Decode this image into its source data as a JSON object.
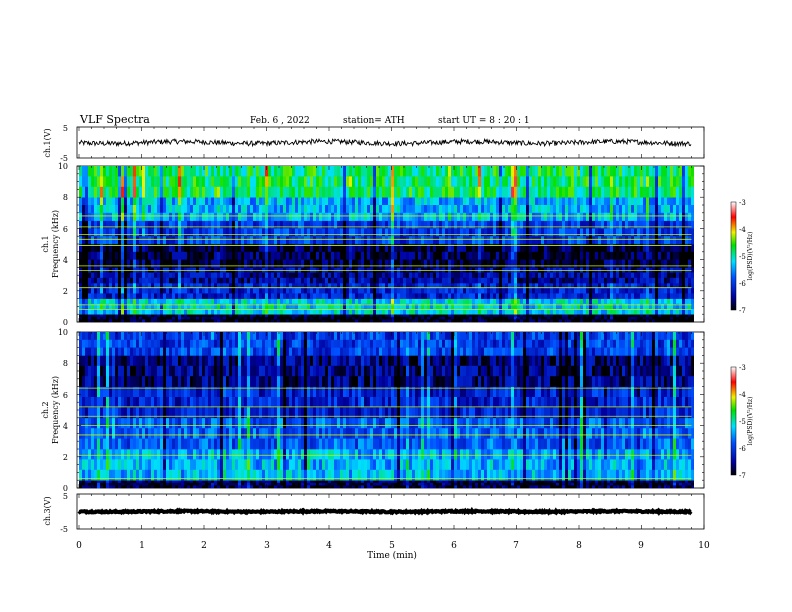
{
  "header": {
    "title": "VLF  Spectra",
    "date": "Feb. 6  , 2022",
    "station": "station= ATH",
    "start_ut": "start  UT  =   8  : 20 : 1"
  },
  "chart_data": [
    {
      "type": "line",
      "panel": "ch1-waveform",
      "ylabel": "ch.1(V)",
      "ylim": [
        -5,
        5
      ],
      "y_ticks": [
        "5",
        "-5"
      ],
      "xlim": [
        0,
        10
      ],
      "trace_extent_min": 9.8,
      "baseline_v": 0,
      "amplitude_v": 0.8,
      "color": "#000000"
    },
    {
      "type": "heatmap",
      "panel": "ch1-spectrogram",
      "ylabel": "ch.1",
      "ylabel2": "Frequency  (kHz)",
      "ylim": [
        0,
        10
      ],
      "y_ticks": [
        "0",
        "2",
        "4",
        "6",
        "8",
        "10"
      ],
      "xlim": [
        0,
        10
      ],
      "data_extent_min": 9.8,
      "colorbar": {
        "label": "log(PSD)(V²/Hz)",
        "range": [
          -7,
          -3
        ],
        "ticks": [
          "-3",
          "-4",
          "-5",
          "-6",
          "-7"
        ]
      },
      "bands": [
        {
          "from_khz": 0,
          "to_khz": 0.5,
          "log_psd": -7
        },
        {
          "from_khz": 0.5,
          "to_khz": 1.5,
          "log_psd": -5.2
        },
        {
          "from_khz": 1.5,
          "to_khz": 2.5,
          "log_psd": -6.2
        },
        {
          "from_khz": 2.5,
          "to_khz": 3.5,
          "log_psd": -6.5
        },
        {
          "from_khz": 3.5,
          "to_khz": 5.0,
          "log_psd": -6.8
        },
        {
          "from_khz": 5.0,
          "to_khz": 6.5,
          "log_psd": -6.0
        },
        {
          "from_khz": 6.5,
          "to_khz": 8.0,
          "log_psd": -5.4
        },
        {
          "from_khz": 8.0,
          "to_khz": 10,
          "log_psd": -4.8
        }
      ],
      "tones_khz": [
        0.8,
        1.1,
        2.2,
        3.3,
        3.6,
        4.9,
        5.3,
        5.6,
        6.1,
        6.8
      ]
    },
    {
      "type": "heatmap",
      "panel": "ch2-spectrogram",
      "ylabel": "ch.2",
      "ylabel2": "Frequency  (kHz)",
      "ylim": [
        0,
        10
      ],
      "y_ticks": [
        "0",
        "2",
        "4",
        "6",
        "8",
        "10"
      ],
      "xlim": [
        0,
        10
      ],
      "data_extent_min": 9.8,
      "colorbar": {
        "label": "log(PSD)(V²/Hz)",
        "range": [
          -7,
          -3
        ],
        "ticks": [
          "-3",
          "-4",
          "-5",
          "-6",
          "-7"
        ]
      },
      "bands": [
        {
          "from_khz": 0,
          "to_khz": 0.5,
          "log_psd": -6.8
        },
        {
          "from_khz": 0.5,
          "to_khz": 2.5,
          "log_psd": -5.4
        },
        {
          "from_khz": 2.5,
          "to_khz": 4.5,
          "log_psd": -5.8
        },
        {
          "from_khz": 4.5,
          "to_khz": 6.5,
          "log_psd": -6.2
        },
        {
          "from_khz": 6.5,
          "to_khz": 8.5,
          "log_psd": -6.6
        },
        {
          "from_khz": 8.5,
          "to_khz": 10,
          "log_psd": -6.0
        }
      ],
      "tones_khz": [
        0.6,
        2.1,
        3.4,
        4.0,
        4.6,
        5.2,
        6.4
      ]
    },
    {
      "type": "line",
      "panel": "ch3-waveform",
      "ylabel": "ch.3(V)",
      "ylim": [
        -5,
        5
      ],
      "y_ticks": [
        "5",
        "-5"
      ],
      "xlim": [
        0,
        10
      ],
      "trace_extent_min": 9.8,
      "baseline_v": 0,
      "amplitude_v": 0.2,
      "color": "#000000"
    }
  ],
  "x_axis": {
    "label": "Time  (min)",
    "ticks": [
      "0",
      "1",
      "2",
      "3",
      "4",
      "5",
      "6",
      "7",
      "8",
      "9",
      "10"
    ]
  }
}
